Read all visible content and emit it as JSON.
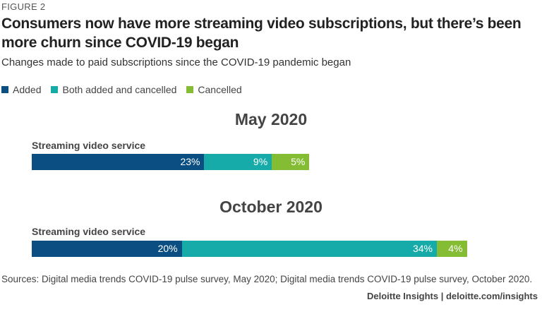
{
  "figure_label": "FIGURE 2",
  "chart_data": {
    "type": "bar",
    "orientation": "horizontal-stacked",
    "title": "Consumers now have more streaming video subscriptions, but there’s been more churn since COVID-19 began",
    "subtitle": "Changes made to paid subscriptions since the COVID-19 pandemic began",
    "legend_position": "top-left",
    "series_names": [
      "Added",
      "Both added and cancelled",
      "Cancelled"
    ],
    "colors": [
      "#0b4f82",
      "#16aaa8",
      "#84bd33"
    ],
    "unit": "%",
    "panels": [
      {
        "title": "May 2020",
        "category": "Streaming video service",
        "values": [
          23,
          9,
          5
        ],
        "labels": [
          "23%",
          "9%",
          "5%"
        ]
      },
      {
        "title": "October 2020",
        "category": "Streaming video service",
        "values": [
          20,
          34,
          4
        ],
        "labels": [
          "20%",
          "34%",
          "4%"
        ]
      }
    ]
  },
  "sources": "Sources: Digital media trends COVID-19 pulse survey, May 2020; Digital media trends COVID-19 pulse survey, October 2020.",
  "credit": "Deloitte Insights | deloitte.com/insights"
}
